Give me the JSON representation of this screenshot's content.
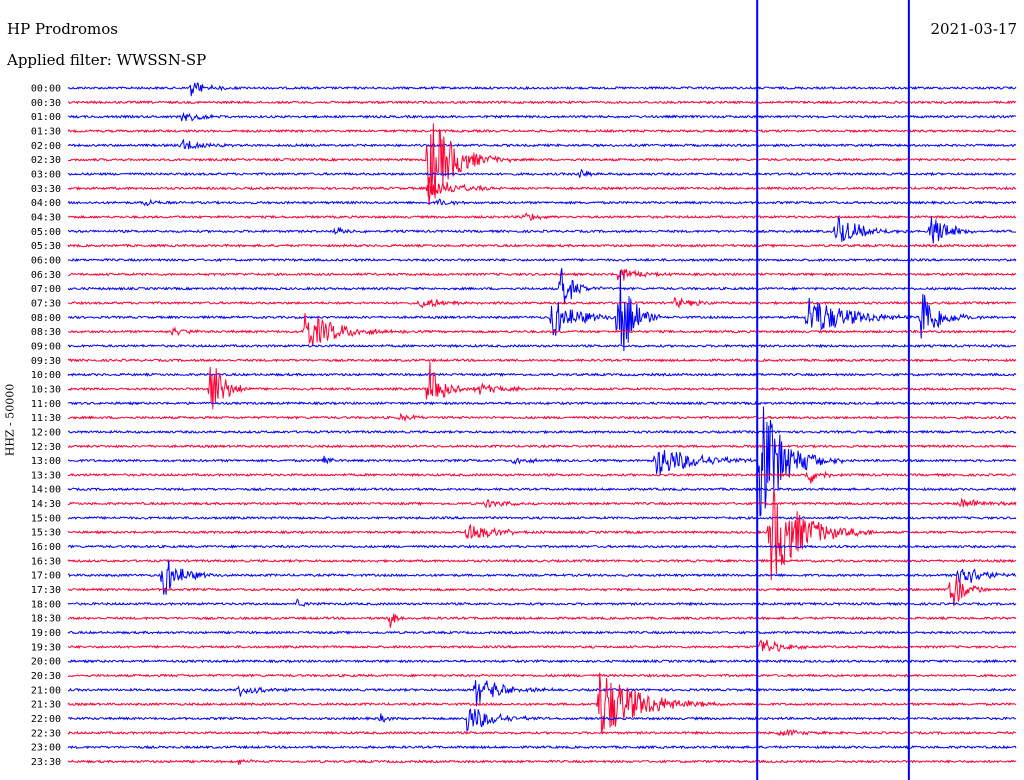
{
  "header": {
    "station": "HP Prodromos",
    "filter": "Applied filter: WWSSN-SP",
    "date": "2021-03-17"
  },
  "axis": {
    "ylabel": "HHZ - 50000"
  },
  "colors": {
    "trace_a": "#0000ff",
    "trace_b": "#ff0033",
    "background": "#ffffff"
  },
  "chart_data": {
    "type": "line",
    "title": "HP Prodromos",
    "subtitle": "Applied filter: WWSSN-SP",
    "ylabel": "HHZ - 50000",
    "date": "2021-03-17",
    "row_labels": [
      "00:00",
      "00:30",
      "01:00",
      "01:30",
      "02:00",
      "02:30",
      "03:00",
      "03:30",
      "04:00",
      "04:30",
      "05:00",
      "05:30",
      "06:00",
      "06:30",
      "07:00",
      "07:30",
      "08:00",
      "08:30",
      "09:00",
      "09:30",
      "10:00",
      "10:30",
      "11:00",
      "11:30",
      "12:00",
      "12:30",
      "13:00",
      "13:30",
      "14:00",
      "14:30",
      "15:00",
      "15:30",
      "16:00",
      "16:30",
      "17:00",
      "17:30",
      "18:00",
      "18:30",
      "19:00",
      "19:30",
      "20:00",
      "20:30",
      "21:00",
      "21:30",
      "22:00",
      "22:30",
      "23:00",
      "23:30"
    ],
    "colors_alternate": [
      "#0000ff",
      "#ff0033"
    ],
    "events": [
      {
        "row": 0,
        "t": 0.13,
        "amp": 1.1,
        "dur": 0.025
      },
      {
        "row": 2,
        "t": 0.12,
        "amp": 0.7,
        "dur": 0.03
      },
      {
        "row": 4,
        "t": 0.12,
        "amp": 0.9,
        "dur": 0.03
      },
      {
        "row": 5,
        "t": 0.38,
        "amp": 6.5,
        "dur": 0.04
      },
      {
        "row": 6,
        "t": 0.54,
        "amp": 1.2,
        "dur": 0.01
      },
      {
        "row": 7,
        "t": 0.38,
        "amp": 1.6,
        "dur": 0.04
      },
      {
        "row": 8,
        "t": 0.39,
        "amp": 0.6,
        "dur": 0.02
      },
      {
        "row": 8,
        "t": 0.08,
        "amp": 0.6,
        "dur": 0.02
      },
      {
        "row": 9,
        "t": 0.48,
        "amp": 0.6,
        "dur": 0.03
      },
      {
        "row": 10,
        "t": 0.28,
        "amp": 0.5,
        "dur": 0.03
      },
      {
        "row": 10,
        "t": 0.81,
        "amp": 2.0,
        "dur": 0.04
      },
      {
        "row": 10,
        "t": 0.91,
        "amp": 2.2,
        "dur": 0.03
      },
      {
        "row": 13,
        "t": 0.58,
        "amp": 1.1,
        "dur": 0.03
      },
      {
        "row": 14,
        "t": 0.52,
        "amp": 3.0,
        "dur": 0.02
      },
      {
        "row": 15,
        "t": 0.37,
        "amp": 0.8,
        "dur": 0.04
      },
      {
        "row": 15,
        "t": 0.64,
        "amp": 0.6,
        "dur": 0.04
      },
      {
        "row": 16,
        "t": 0.51,
        "amp": 2.8,
        "dur": 0.04
      },
      {
        "row": 16,
        "t": 0.58,
        "amp": 8.0,
        "dur": 0.02
      },
      {
        "row": 16,
        "t": 0.78,
        "amp": 3.0,
        "dur": 0.06
      },
      {
        "row": 16,
        "t": 0.9,
        "amp": 3.5,
        "dur": 0.03
      },
      {
        "row": 17,
        "t": 0.25,
        "amp": 2.6,
        "dur": 0.05
      },
      {
        "row": 17,
        "t": 0.11,
        "amp": 0.6,
        "dur": 0.02
      },
      {
        "row": 21,
        "t": 0.15,
        "amp": 5.0,
        "dur": 0.02
      },
      {
        "row": 21,
        "t": 0.38,
        "amp": 4.5,
        "dur": 0.02
      },
      {
        "row": 21,
        "t": 0.43,
        "amp": 0.9,
        "dur": 0.04
      },
      {
        "row": 23,
        "t": 0.35,
        "amp": 0.4,
        "dur": 0.03
      },
      {
        "row": 26,
        "t": 0.27,
        "amp": 0.9,
        "dur": 0.01
      },
      {
        "row": 26,
        "t": 0.47,
        "amp": 0.7,
        "dur": 0.02
      },
      {
        "row": 26,
        "t": 0.62,
        "amp": 2.2,
        "dur": 0.06
      },
      {
        "row": 26,
        "t": 0.73,
        "amp": 8.0,
        "dur": 0.04
      },
      {
        "row": 27,
        "t": 0.78,
        "amp": 1.4,
        "dur": 0.02
      },
      {
        "row": 29,
        "t": 0.44,
        "amp": 0.6,
        "dur": 0.03
      },
      {
        "row": 29,
        "t": 0.94,
        "amp": 0.6,
        "dur": 0.06
      },
      {
        "row": 31,
        "t": 0.42,
        "amp": 1.4,
        "dur": 0.04
      },
      {
        "row": 31,
        "t": 0.74,
        "amp": 7.0,
        "dur": 0.05
      },
      {
        "row": 34,
        "t": 0.1,
        "amp": 3.0,
        "dur": 0.03
      },
      {
        "row": 34,
        "t": 0.94,
        "amp": 2.2,
        "dur": 0.03
      },
      {
        "row": 35,
        "t": 0.93,
        "amp": 3.5,
        "dur": 0.02
      },
      {
        "row": 36,
        "t": 0.24,
        "amp": 0.6,
        "dur": 0.02
      },
      {
        "row": 37,
        "t": 0.34,
        "amp": 1.3,
        "dur": 0.01
      },
      {
        "row": 39,
        "t": 0.73,
        "amp": 1.3,
        "dur": 0.03
      },
      {
        "row": 42,
        "t": 0.18,
        "amp": 0.9,
        "dur": 0.03
      },
      {
        "row": 42,
        "t": 0.43,
        "amp": 2.2,
        "dur": 0.04
      },
      {
        "row": 43,
        "t": 0.56,
        "amp": 5.0,
        "dur": 0.06
      },
      {
        "row": 44,
        "t": 0.42,
        "amp": 2.0,
        "dur": 0.04
      },
      {
        "row": 44,
        "t": 0.33,
        "amp": 0.6,
        "dur": 0.01
      },
      {
        "row": 45,
        "t": 0.75,
        "amp": 0.6,
        "dur": 0.03
      },
      {
        "row": 47,
        "t": 0.18,
        "amp": 0.5,
        "dur": 0.02
      }
    ],
    "glitches": [
      {
        "t": 0.727,
        "color": "#0000ff"
      },
      {
        "t": 0.887,
        "color": "#0000ff"
      }
    ]
  }
}
